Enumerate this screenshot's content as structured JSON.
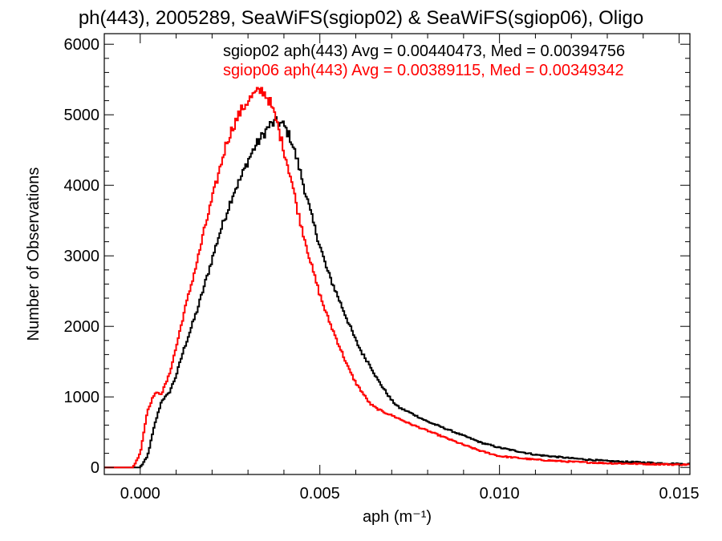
{
  "chart_data": {
    "type": "line",
    "title": "ph(443), 2005289, SeaWiFS(sgiop02) & SeaWiFS(sgiop06), Oligo",
    "xlabel": "aph (m⁻¹)",
    "ylabel": "Number of Observations",
    "xlim": [
      -0.001,
      0.0153
    ],
    "ylim": [
      -100,
      6150
    ],
    "x_ticks": [
      0.0,
      0.005,
      0.01,
      0.015
    ],
    "x_tick_labels": [
      "0.000",
      "0.005",
      "0.010",
      "0.015"
    ],
    "y_ticks": [
      0,
      1000,
      2000,
      3000,
      4000,
      5000,
      6000
    ],
    "y_tick_labels": [
      "0",
      "1000",
      "2000",
      "3000",
      "4000",
      "5000",
      "6000"
    ],
    "grid": false,
    "legend_position": "top-right",
    "series": [
      {
        "name": "sgiop02 aph(443) Avg = 0.00440473, Med = 0.00394756",
        "color": "#000000",
        "x": [
          -0.001,
          0.0,
          0.0002,
          0.0004,
          0.0006,
          0.0008,
          0.001,
          0.0012,
          0.0014,
          0.0016,
          0.0018,
          0.002,
          0.0022,
          0.0024,
          0.0026,
          0.0028,
          0.003,
          0.0032,
          0.0034,
          0.0036,
          0.0038,
          0.004,
          0.0042,
          0.0044,
          0.0046,
          0.0048,
          0.005,
          0.0052,
          0.0054,
          0.0056,
          0.0058,
          0.006,
          0.0062,
          0.0064,
          0.0066,
          0.0068,
          0.007,
          0.0072,
          0.0075,
          0.008,
          0.0085,
          0.009,
          0.0095,
          0.01,
          0.011,
          0.012,
          0.013,
          0.014,
          0.015
        ],
        "values": [
          0,
          0,
          150,
          600,
          950,
          1050,
          1300,
          1650,
          1950,
          2250,
          2600,
          2950,
          3300,
          3600,
          3900,
          4100,
          4350,
          4550,
          4700,
          4850,
          4900,
          4850,
          4650,
          4300,
          3900,
          3500,
          3150,
          2800,
          2550,
          2300,
          2050,
          1800,
          1600,
          1450,
          1250,
          1100,
          950,
          850,
          780,
          650,
          550,
          450,
          350,
          280,
          180,
          130,
          90,
          70,
          50
        ]
      },
      {
        "name": "sgiop06 aph(443) Avg = 0.00389115, Med = 0.00349342",
        "color": "#ff0000",
        "x": [
          -0.001,
          -0.0002,
          0.0,
          0.0001,
          0.0002,
          0.0004,
          0.0006,
          0.0008,
          0.001,
          0.0012,
          0.0014,
          0.0016,
          0.0018,
          0.002,
          0.0022,
          0.0024,
          0.0026,
          0.0028,
          0.003,
          0.0032,
          0.0034,
          0.0036,
          0.0038,
          0.004,
          0.0042,
          0.0044,
          0.0046,
          0.0048,
          0.005,
          0.0052,
          0.0054,
          0.0056,
          0.0058,
          0.006,
          0.0062,
          0.0064,
          0.0066,
          0.0068,
          0.007,
          0.0075,
          0.008,
          0.0085,
          0.009,
          0.0095,
          0.01,
          0.011,
          0.012,
          0.013,
          0.014,
          0.015
        ],
        "values": [
          0,
          0,
          200,
          500,
          800,
          1050,
          1050,
          1300,
          1700,
          2150,
          2550,
          2950,
          3400,
          3800,
          4200,
          4600,
          4850,
          5050,
          5200,
          5300,
          5350,
          5200,
          4900,
          4500,
          4100,
          3600,
          3200,
          2800,
          2450,
          2150,
          1900,
          1650,
          1400,
          1200,
          1050,
          900,
          830,
          780,
          740,
          620,
          520,
          420,
          320,
          230,
          160,
          110,
          80,
          60,
          50,
          40
        ]
      }
    ]
  }
}
